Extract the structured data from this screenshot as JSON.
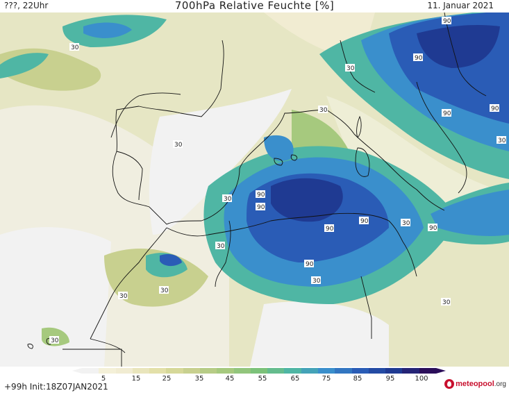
{
  "header": {
    "left": "???, 22Uhr",
    "title": "700hPa Relative Feuchte [%]",
    "right": "11. Januar 2021"
  },
  "legend": {
    "ticks": [
      "5",
      "15",
      "25",
      "35",
      "45",
      "55",
      "65",
      "75",
      "85",
      "95",
      "100"
    ],
    "colors": [
      "#f2f2f2",
      "#f1ecd2",
      "#e3e0a9",
      "#c8d08f",
      "#a6c97e",
      "#7cc27a",
      "#4fb6a4",
      "#3a8fcc",
      "#2a5cb6",
      "#1f3a92",
      "#2b0e5a"
    ]
  },
  "footer": {
    "init": "+99h  Init:18Z07JAN2021",
    "brand": "meteopool",
    "brand_tld": ".org"
  },
  "map": {
    "labels": [
      "30",
      "30",
      "30",
      "30",
      "30",
      "30",
      "30",
      "30",
      "30",
      "30",
      "30",
      "30",
      "30",
      "90",
      "90",
      "90",
      "90",
      "90",
      "90",
      "90",
      "90",
      "90",
      "90"
    ]
  }
}
